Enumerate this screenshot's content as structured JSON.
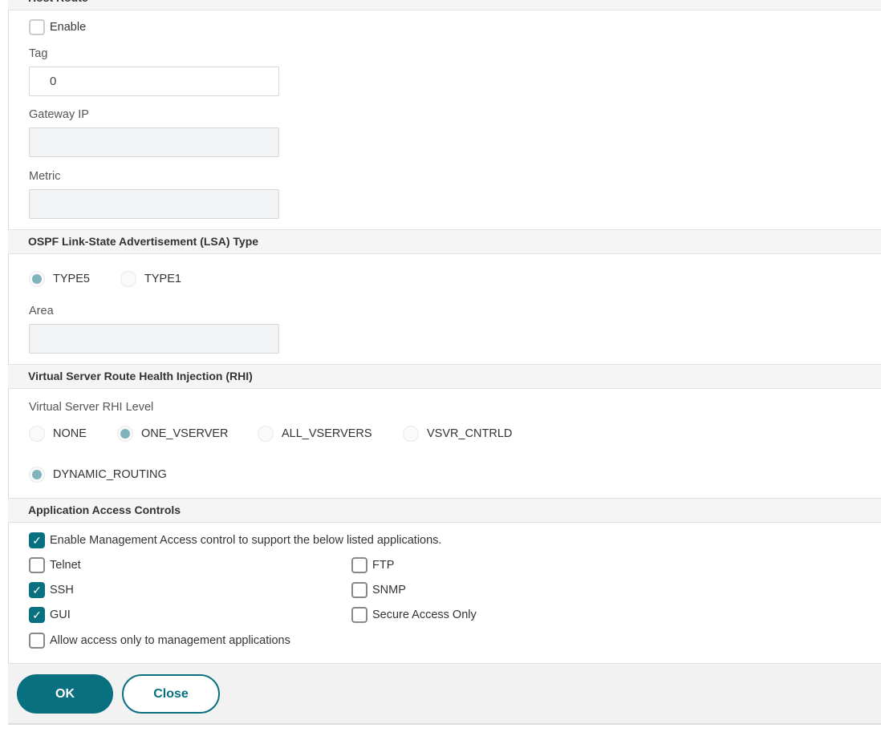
{
  "host_route": {
    "title": "Host Route",
    "enable": "Enable",
    "enable_checked": false,
    "tag_label": "Tag",
    "tag_value": "0",
    "gateway_label": "Gateway IP",
    "gateway_value": "",
    "metric_label": "Metric",
    "metric_value": ""
  },
  "ospf": {
    "title": "OSPF Link-State Advertisement (LSA) Type",
    "options": [
      "TYPE5",
      "TYPE1"
    ],
    "selected": "TYPE5",
    "area_label": "Area",
    "area_value": ""
  },
  "rhi": {
    "title": "Virtual Server Route Health Injection (RHI)",
    "level_label": "Virtual Server RHI Level",
    "options": [
      "NONE",
      "ONE_VSERVER",
      "ALL_VSERVERS",
      "VSVR_CNTRLD"
    ],
    "selected": "ONE_VSERVER",
    "dynamic": "DYNAMIC_ROUTING",
    "dynamic_selected": true
  },
  "access": {
    "title": "Application Access Controls",
    "enable_mgmt": "Enable Management Access control to support the below listed applications.",
    "telnet": "Telnet",
    "ftp": "FTP",
    "ssh": "SSH",
    "snmp": "SNMP",
    "gui": "GUI",
    "secure": "Secure Access Only",
    "allow_only": "Allow access only to management applications",
    "checked": {
      "enable_mgmt": true,
      "telnet": false,
      "ftp": false,
      "ssh": true,
      "snmp": false,
      "gui": true,
      "secure": false,
      "allow_only": false
    }
  },
  "footer": {
    "ok": "OK",
    "close": "Close"
  },
  "colors": {
    "accent": "#08707f"
  }
}
